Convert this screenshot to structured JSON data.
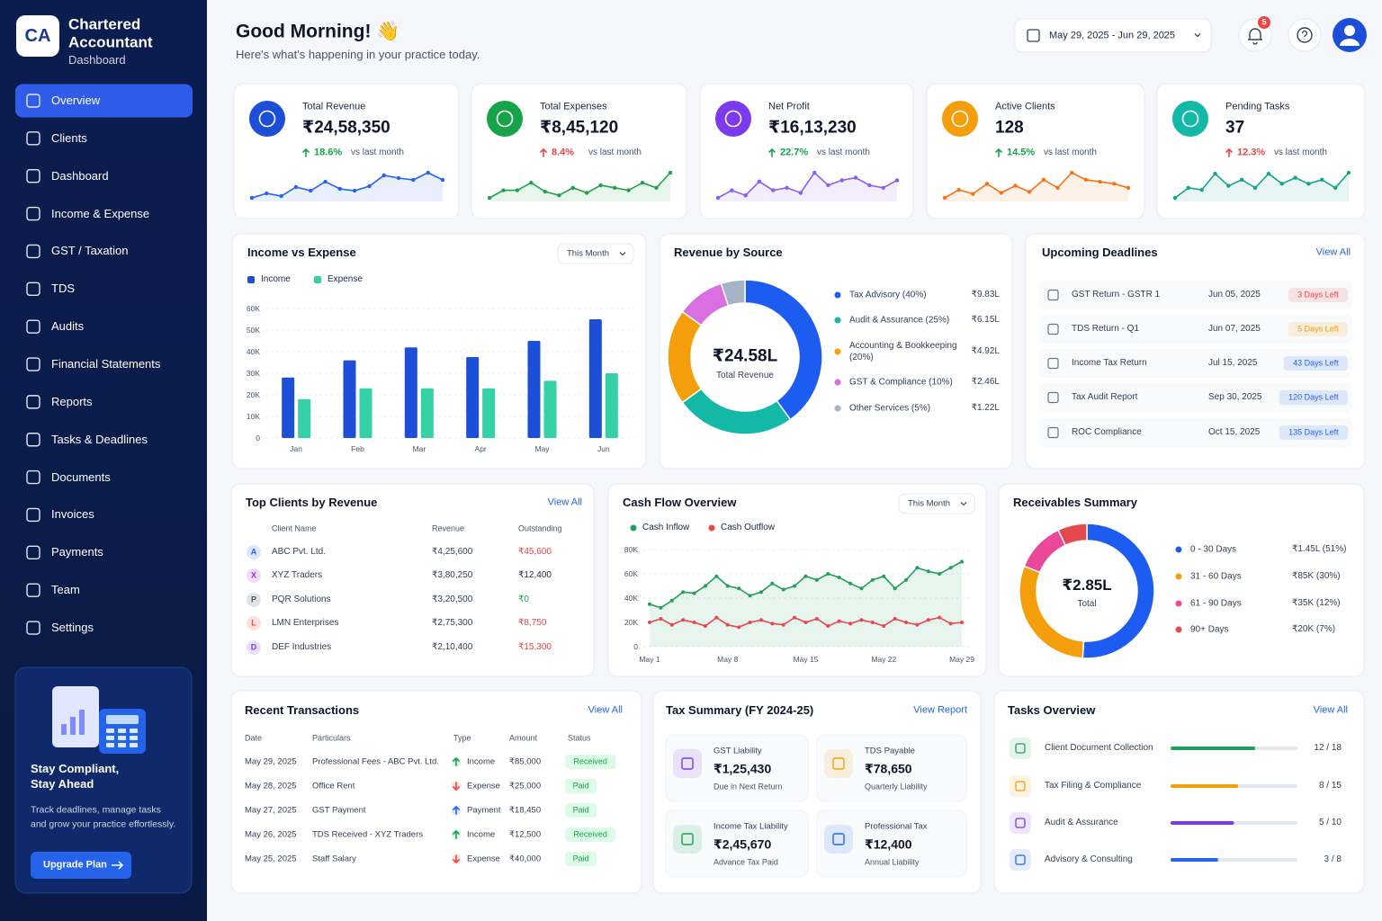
{
  "sidebar": {
    "logo": "CA",
    "brand": "Chartered Accountant",
    "subtitle": "Dashboard",
    "menu": [
      "Overview",
      "Clients",
      "Dashboard",
      "Income & Expense",
      "GST / Taxation",
      "TDS",
      "Audits",
      "Financial Statements",
      "Reports",
      "Tasks & Deadlines",
      "Documents",
      "Invoices",
      "Payments",
      "Team",
      "Settings"
    ],
    "promo": {
      "title": "Stay Compliant, Stay Ahead",
      "text": "Track deadlines, manage tasks and grow your practice effortlessly.",
      "button": "Upgrade Plan"
    }
  },
  "header": {
    "greeting": "Good Morning! 👋",
    "subtitle": "Here's what's happening in your practice today.",
    "date_range": "May 29, 2025 - Jun 29, 2025",
    "notifications": 5
  },
  "kpis": [
    {
      "label": "Total Revenue",
      "value": "₹24,58,350",
      "change": "18.6%",
      "note": "vs last month",
      "change_color": "#16a34a",
      "color": "#1d4ed8",
      "trend_color": "#2563eb",
      "trend": [
        20,
        25,
        22,
        32,
        28,
        38,
        30,
        28,
        33,
        45,
        42,
        40,
        48,
        40
      ]
    },
    {
      "label": "Total Expenses",
      "value": "₹8,45,120",
      "change": "8.4%",
      "note": "vs last month",
      "change_color": "#ef4444",
      "color": "#16a34a",
      "trend_color": "#22a04b",
      "trend": [
        20,
        26,
        26,
        32,
        25,
        22,
        28,
        24,
        30,
        28,
        26,
        32,
        28,
        40
      ]
    },
    {
      "label": "Net Profit",
      "value": "₹16,13,230",
      "change": "22.7%",
      "note": "vs last month",
      "change_color": "#16a34a",
      "color": "#7c3aed",
      "trend_color": "#8b5cf6",
      "trend": [
        22,
        28,
        24,
        35,
        28,
        30,
        26,
        42,
        32,
        36,
        38,
        32,
        30,
        36
      ]
    },
    {
      "label": "Active Clients",
      "value": "128",
      "change": "14.5%",
      "note": "vs last month",
      "change_color": "#16a34a",
      "color": "#f59e0b",
      "trend_color": "#f97316",
      "trend": [
        20,
        28,
        24,
        34,
        25,
        32,
        26,
        38,
        30,
        45,
        38,
        36,
        34,
        30
      ]
    },
    {
      "label": "Pending Tasks",
      "value": "37",
      "change": "12.3%",
      "note": "vs last month",
      "change_color": "#ef4444",
      "color": "#14b8a6",
      "trend_color": "#14a38f",
      "trend": [
        20,
        30,
        28,
        44,
        32,
        38,
        30,
        44,
        34,
        40,
        34,
        38,
        30,
        45
      ]
    }
  ],
  "chart_data": [
    {
      "type": "bar",
      "title": "Income vs Expense",
      "filter": "This Month",
      "categories": [
        "Jan",
        "Feb",
        "Mar",
        "Apr",
        "May",
        "Jun"
      ],
      "series": [
        {
          "name": "Income",
          "color": "#1d4ed8",
          "values": [
            28000,
            36000,
            42000,
            37500,
            45000,
            55000
          ]
        },
        {
          "name": "Expense",
          "color": "#34d1a6",
          "values": [
            18000,
            23000,
            23000,
            23000,
            26500,
            30000
          ]
        }
      ],
      "ylim": [
        0,
        60000
      ],
      "yticks": [
        0,
        {
          "value": 10000,
          "label": "10K"
        },
        {
          "value": 20000,
          "label": "20K"
        },
        {
          "value": 30000,
          "label": "30K"
        },
        {
          "value": 40000,
          "label": "40K"
        },
        {
          "value": 50000,
          "label": "50K"
        },
        {
          "value": 60000,
          "label": "60K"
        }
      ],
      "grid": true
    },
    {
      "type": "donut",
      "title": "Revenue by Source",
      "center_value": "₹24.58L",
      "center_label": "Total Revenue",
      "categories": [
        "Tax Advisory (40%)",
        "Audit & Assurance (25%)",
        "Accounting & Bookkeeping (20%)",
        "GST & Compliance (10%)",
        "Other Services (5%)"
      ],
      "values": [
        40,
        25,
        20,
        10,
        5
      ],
      "amounts": [
        "₹9.83L",
        "₹6.15L",
        "₹4.92L",
        "₹2.46L",
        "₹1.22L"
      ],
      "colors": [
        "#1d5cf0",
        "#14b8a6",
        "#f59e0b",
        "#d96fe0",
        "#a6b4c8"
      ]
    },
    {
      "type": "line",
      "title": "Cash Flow Overview",
      "filter": "This Month",
      "categories": [
        "May 1",
        null,
        null,
        null,
        null,
        null,
        null,
        "May 8",
        null,
        null,
        null,
        null,
        null,
        null,
        "May 15",
        null,
        null,
        null,
        null,
        null,
        null,
        "May 22",
        null,
        null,
        null,
        null,
        null,
        null,
        "May 29"
      ],
      "series": [
        {
          "name": "Cash Inflow",
          "color": "#22a05a",
          "values": [
            35000,
            32000,
            38000,
            45000,
            44000,
            50000,
            58000,
            50000,
            48000,
            42000,
            45000,
            52000,
            47000,
            50000,
            58000,
            55000,
            60000,
            57000,
            52000,
            48000,
            55000,
            58000,
            48000,
            55000,
            65000,
            62000,
            60000,
            65000,
            70000
          ]
        },
        {
          "name": "Cash Outflow",
          "color": "#e5484d",
          "values": [
            20000,
            23000,
            18000,
            22000,
            20000,
            17000,
            24000,
            18000,
            16000,
            20000,
            22000,
            19000,
            18000,
            24000,
            20000,
            23000,
            17000,
            21000,
            19000,
            22000,
            20000,
            17000,
            23000,
            20000,
            18000,
            22000,
            24000,
            19000,
            20000
          ]
        }
      ],
      "ylim": [
        0,
        80000
      ],
      "yticks": [
        0,
        {
          "value": 20000,
          "label": "20K"
        },
        {
          "value": 40000,
          "label": "40K"
        },
        {
          "value": 60000,
          "label": "60K"
        },
        {
          "value": 80000,
          "label": "80K"
        }
      ],
      "grid": true
    },
    {
      "type": "donut",
      "title": "Receivables Summary",
      "center_value": "₹2.85L",
      "center_label": "Total",
      "categories": [
        "0 - 30 Days",
        "31 - 60 Days",
        "61 - 90 Days",
        "90+ Days"
      ],
      "values": [
        51,
        30,
        12,
        7
      ],
      "amounts": [
        "₹1.45L (51%)",
        "₹85K (30%)",
        "₹35K (12%)",
        "₹20K (7%)"
      ],
      "colors": [
        "#1d5cf0",
        "#f59e0b",
        "#ec4899",
        "#e5484d"
      ]
    }
  ],
  "deadlines": {
    "title": "Upcoming Deadlines",
    "link": "View All",
    "rows": [
      {
        "task": "GST Return - GSTR 1",
        "date": "Jun 05, 2025",
        "status": "3 Days Left",
        "color": "#ef4444"
      },
      {
        "task": "TDS Return - Q1",
        "date": "Jun 07, 2025",
        "status": "5 Days Left",
        "color": "#f59e0b"
      },
      {
        "task": "Income Tax Return",
        "date": "Jul 15, 2025",
        "status": "43 Days Left",
        "color": "#2563eb"
      },
      {
        "task": "Tax Audit Report",
        "date": "Sep 30, 2025",
        "status": "120 Days Left",
        "color": "#2563eb"
      },
      {
        "task": "ROC Compliance",
        "date": "Oct 15, 2025",
        "status": "135 Days Left",
        "color": "#2563eb"
      }
    ]
  },
  "clients": {
    "title": "Top Clients by Revenue",
    "link": "View All",
    "columns": [
      "Client Name",
      "Revenue",
      "Outstanding"
    ],
    "rows": [
      {
        "initial": "A",
        "name": "ABC Pvt. Ltd.",
        "revenue": "₹4,25,600",
        "outstanding": "₹45,600",
        "color": "#2563eb",
        "outstanding_color": "#ef4444"
      },
      {
        "initial": "X",
        "name": "XYZ Traders",
        "revenue": "₹3,80,250",
        "outstanding": "₹12,400",
        "color": "#9333ea",
        "outstanding_color": "#1e293b"
      },
      {
        "initial": "P",
        "name": "PQR Solutions",
        "revenue": "₹3,20,500",
        "outstanding": "₹0",
        "color": "#475569",
        "outstanding_color": "#16a34a"
      },
      {
        "initial": "L",
        "name": "LMN Enterprises",
        "revenue": "₹2,75,300",
        "outstanding": "₹8,750",
        "color": "#ef4444",
        "outstanding_color": "#ef4444"
      },
      {
        "initial": "D",
        "name": "DEF Industries",
        "revenue": "₹2,10,400",
        "outstanding": "₹15,300",
        "color": "#7c3aed",
        "outstanding_color": "#ef4444"
      }
    ]
  },
  "transactions": {
    "title": "Recent Transactions",
    "link": "View All",
    "columns": [
      "Date",
      "Particulars",
      "Type",
      "Amount",
      "Status"
    ],
    "rows": [
      {
        "date": "May 29, 2025",
        "particulars": "Professional Fees - ABC Pvt. Ltd.",
        "type": "Income",
        "amount": "₹85,000",
        "status": "Received",
        "type_color": "#16a34a"
      },
      {
        "date": "May 28, 2025",
        "particulars": "Office Rent",
        "type": "Expense",
        "amount": "₹25,000",
        "status": "Paid",
        "type_color": "#ef4444"
      },
      {
        "date": "May 27, 2025",
        "particulars": "GST Payment",
        "type": "Payment",
        "amount": "₹18,450",
        "status": "Paid",
        "type_color": "#2563eb"
      },
      {
        "date": "May 26, 2025",
        "particulars": "TDS Received - XYZ Traders",
        "type": "Income",
        "amount": "₹12,500",
        "status": "Received",
        "type_color": "#16a34a"
      },
      {
        "date": "May 25, 2025",
        "particulars": "Staff Salary",
        "type": "Expense",
        "amount": "₹40,000",
        "status": "Paid",
        "type_color": "#ef4444"
      }
    ]
  },
  "tax_summary": {
    "title": "Tax Summary (FY 2024-25)",
    "link": "View Report",
    "items": [
      {
        "label": "GST Liability",
        "amount": "₹1,25,430",
        "note": "Due in Next Return",
        "color": "#7c3aed"
      },
      {
        "label": "TDS Payable",
        "amount": "₹78,650",
        "note": "Quarterly Liability",
        "color": "#f59e0b"
      },
      {
        "label": "Income Tax Liability",
        "amount": "₹2,45,670",
        "note": "Advance Tax Paid",
        "color": "#16a34a"
      },
      {
        "label": "Professional Tax",
        "amount": "₹12,400",
        "note": "Annual Liability",
        "color": "#2563eb"
      }
    ]
  },
  "tasks": {
    "title": "Tasks Overview",
    "link": "View All",
    "items": [
      {
        "label": "Client Document Collection",
        "done": 12,
        "total": 18,
        "text": "12 / 18",
        "color": "#22a05a"
      },
      {
        "label": "Tax Filing & Compliance",
        "done": 8,
        "total": 15,
        "text": "8 / 15",
        "color": "#f59e0b"
      },
      {
        "label": "Audit & Assurance",
        "done": 5,
        "total": 10,
        "text": "5 / 10",
        "color": "#7c3aed"
      },
      {
        "label": "Advisory & Consulting",
        "done": 3,
        "total": 8,
        "text": "3 / 8",
        "color": "#2563eb"
      }
    ]
  }
}
